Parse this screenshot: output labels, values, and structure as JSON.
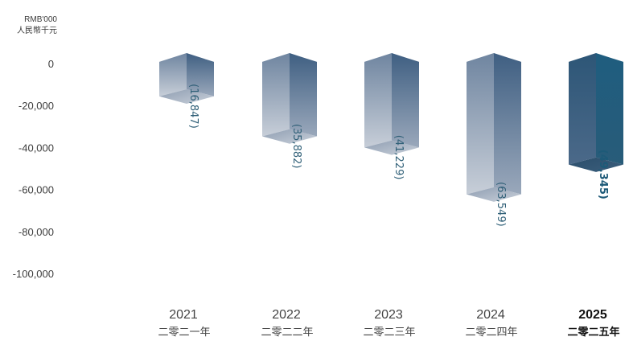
{
  "chart_data": {
    "type": "bar",
    "unit_en": "RMB'000",
    "unit_cn": "人民幣千元",
    "categories": [
      "2021",
      "2022",
      "2023",
      "2024",
      "2025"
    ],
    "categories_cn": [
      "二零二一年",
      "二零二二年",
      "二零二三年",
      "二零二四年",
      "二零二五年"
    ],
    "values": [
      -16847,
      -35882,
      -41229,
      -63549,
      -49345
    ],
    "data_labels": [
      "(16,847)",
      "(35,882)",
      "(41,229)",
      "(63,549)",
      "(49,345)"
    ],
    "yticks": [
      "0",
      "-20,000",
      "-40,000",
      "-60,000",
      "-80,000",
      "-100,000"
    ],
    "ylim": [
      -100000,
      0
    ],
    "grid": false,
    "highlight_index": 4,
    "colors": {
      "face_light": "#c4cbd6",
      "face_dark": "#647b97",
      "top_light": "#a9b4c5",
      "top_dark": "#50698b",
      "highlight_left": "#365f80",
      "highlight_right": "#1f5d7f",
      "highlight_top": "#28506f",
      "label_text": "#2f5f77"
    }
  }
}
